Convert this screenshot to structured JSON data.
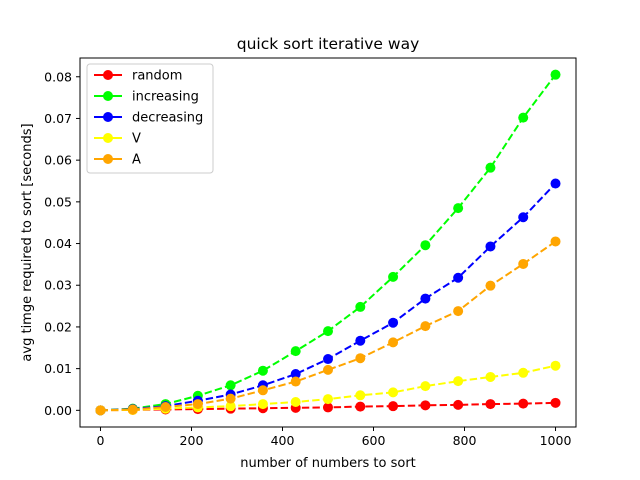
{
  "chart_data": {
    "type": "line",
    "title": "quick sort iterative way",
    "xlabel": "number of numbers to sort",
    "ylabel": "avg timge required to sort  [seconds]",
    "xlim": [
      -45,
      1045
    ],
    "ylim": [
      -0.004,
      0.0845
    ],
    "xticks": [
      0,
      200,
      400,
      600,
      800,
      1000
    ],
    "yticks": [
      0.0,
      0.01,
      0.02,
      0.03,
      0.04,
      0.05,
      0.06,
      0.07,
      0.08
    ],
    "ytick_labels": [
      "0.00",
      "0.01",
      "0.02",
      "0.03",
      "0.04",
      "0.05",
      "0.06",
      "0.07",
      "0.08"
    ],
    "legend_position": "upper-left",
    "x": [
      0,
      71,
      143,
      214,
      286,
      357,
      429,
      500,
      571,
      643,
      714,
      786,
      857,
      929,
      1000
    ],
    "series": [
      {
        "name": "random",
        "color": "#ff0000",
        "values": [
          0.0,
          0.0001,
          0.0002,
          0.0003,
          0.0004,
          0.0005,
          0.0006,
          0.0007,
          0.0009,
          0.001,
          0.0012,
          0.0013,
          0.0015,
          0.0016,
          0.0018
        ]
      },
      {
        "name": "increasing",
        "color": "#00ff00",
        "values": [
          0.0,
          0.0004,
          0.0015,
          0.0035,
          0.006,
          0.0095,
          0.0142,
          0.019,
          0.0248,
          0.032,
          0.0396,
          0.0485,
          0.0582,
          0.0702,
          0.0805
        ]
      },
      {
        "name": "decreasing",
        "color": "#0000ff",
        "values": [
          0.0,
          0.0003,
          0.001,
          0.0023,
          0.0038,
          0.006,
          0.0087,
          0.0123,
          0.0167,
          0.021,
          0.0268,
          0.0318,
          0.0393,
          0.0463,
          0.0544
        ]
      },
      {
        "name": "V",
        "color": "#ffff00",
        "values": [
          0.0,
          0.0001,
          0.0004,
          0.0007,
          0.001,
          0.0015,
          0.002,
          0.0027,
          0.0036,
          0.0043,
          0.0058,
          0.007,
          0.008,
          0.009,
          0.0107
        ]
      },
      {
        "name": "A",
        "color": "#ffa500",
        "values": [
          0.0,
          0.0002,
          0.0008,
          0.0015,
          0.0028,
          0.0048,
          0.0069,
          0.0097,
          0.0125,
          0.0163,
          0.0202,
          0.0238,
          0.0299,
          0.0351,
          0.0405
        ]
      }
    ]
  }
}
